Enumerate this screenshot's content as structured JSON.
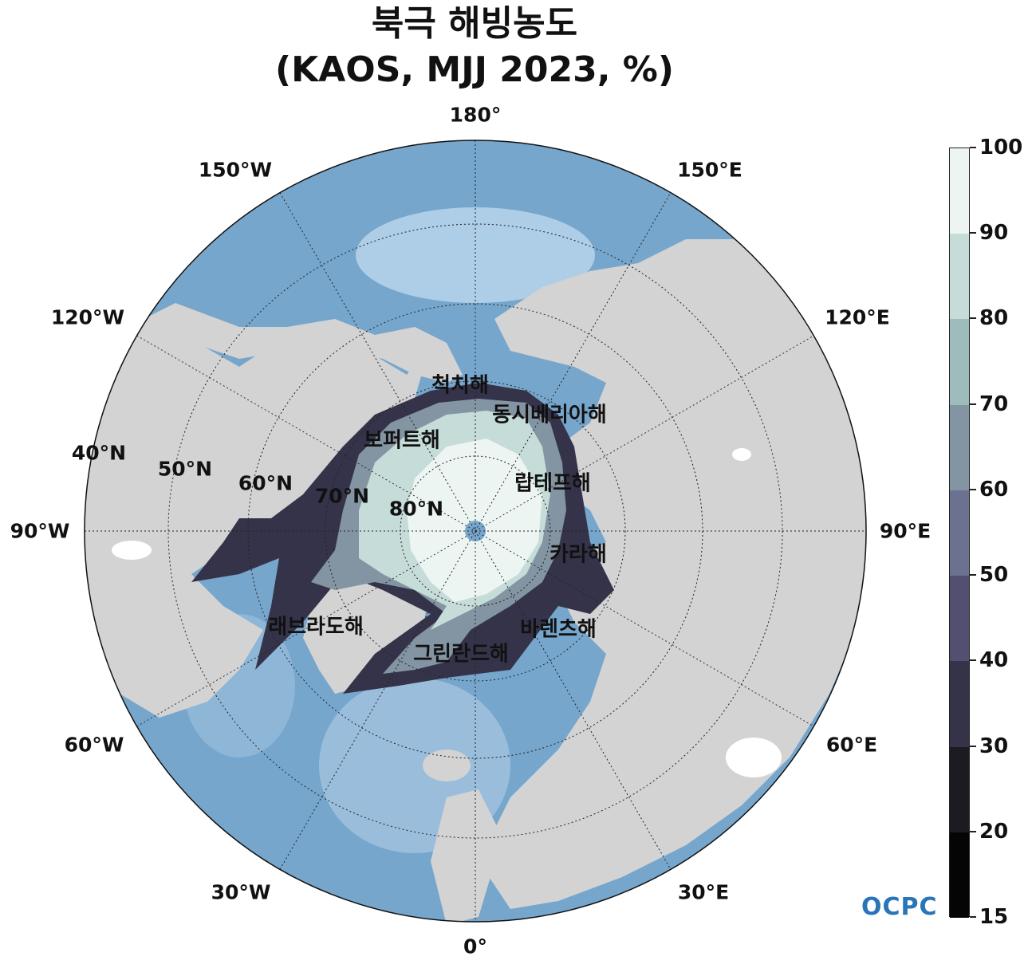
{
  "title": {
    "line1": "북극 해빙농도",
    "line2": "(KAOS, MJJ 2023, %)"
  },
  "longitude_labels": [
    {
      "key": "lon-180",
      "text": "180°"
    },
    {
      "key": "lon-150e",
      "text": "150°E"
    },
    {
      "key": "lon-120e",
      "text": "120°E"
    },
    {
      "key": "lon-90e",
      "text": "90°E"
    },
    {
      "key": "lon-60e",
      "text": "60°E"
    },
    {
      "key": "lon-30e",
      "text": "30°E"
    },
    {
      "key": "lon-0",
      "text": "0°"
    },
    {
      "key": "lon-30w",
      "text": "30°W"
    },
    {
      "key": "lon-60w",
      "text": "60°W"
    },
    {
      "key": "lon-90w",
      "text": "90°W"
    },
    {
      "key": "lon-120w",
      "text": "120°W"
    },
    {
      "key": "lon-150w",
      "text": "150°W"
    }
  ],
  "latitude_labels": [
    {
      "key": "lat-40n",
      "text": "40°N"
    },
    {
      "key": "lat-50n",
      "text": "50°N"
    },
    {
      "key": "lat-60n",
      "text": "60°N"
    },
    {
      "key": "lat-70n",
      "text": "70°N"
    },
    {
      "key": "lat-80n",
      "text": "80°N"
    }
  ],
  "sea_labels": [
    {
      "key": "chukchi",
      "text": "척치해"
    },
    {
      "key": "east-siberian",
      "text": "동시베리아해"
    },
    {
      "key": "beaufort",
      "text": "보퍼트해"
    },
    {
      "key": "laptev",
      "text": "랍테프해"
    },
    {
      "key": "kara",
      "text": "카라해"
    },
    {
      "key": "barents",
      "text": "바렌츠해"
    },
    {
      "key": "labrador",
      "text": "래브라도해"
    },
    {
      "key": "greenland",
      "text": "그린란드해"
    }
  ],
  "colorbar": {
    "ticks": [
      "15",
      "20",
      "30",
      "40",
      "50",
      "60",
      "70",
      "80",
      "90",
      "100"
    ],
    "colors": [
      "#050505",
      "#1c1b22",
      "#35334a",
      "#524f72",
      "#6a7191",
      "#8394a2",
      "#9fbcbd",
      "#c6dcd9",
      "#edf5f3"
    ]
  },
  "logo": {
    "text": "OCPC"
  },
  "colors": {
    "ocean": "#76a6cc",
    "land": "#d3d3d3",
    "shallow": "#c7dff0"
  }
}
